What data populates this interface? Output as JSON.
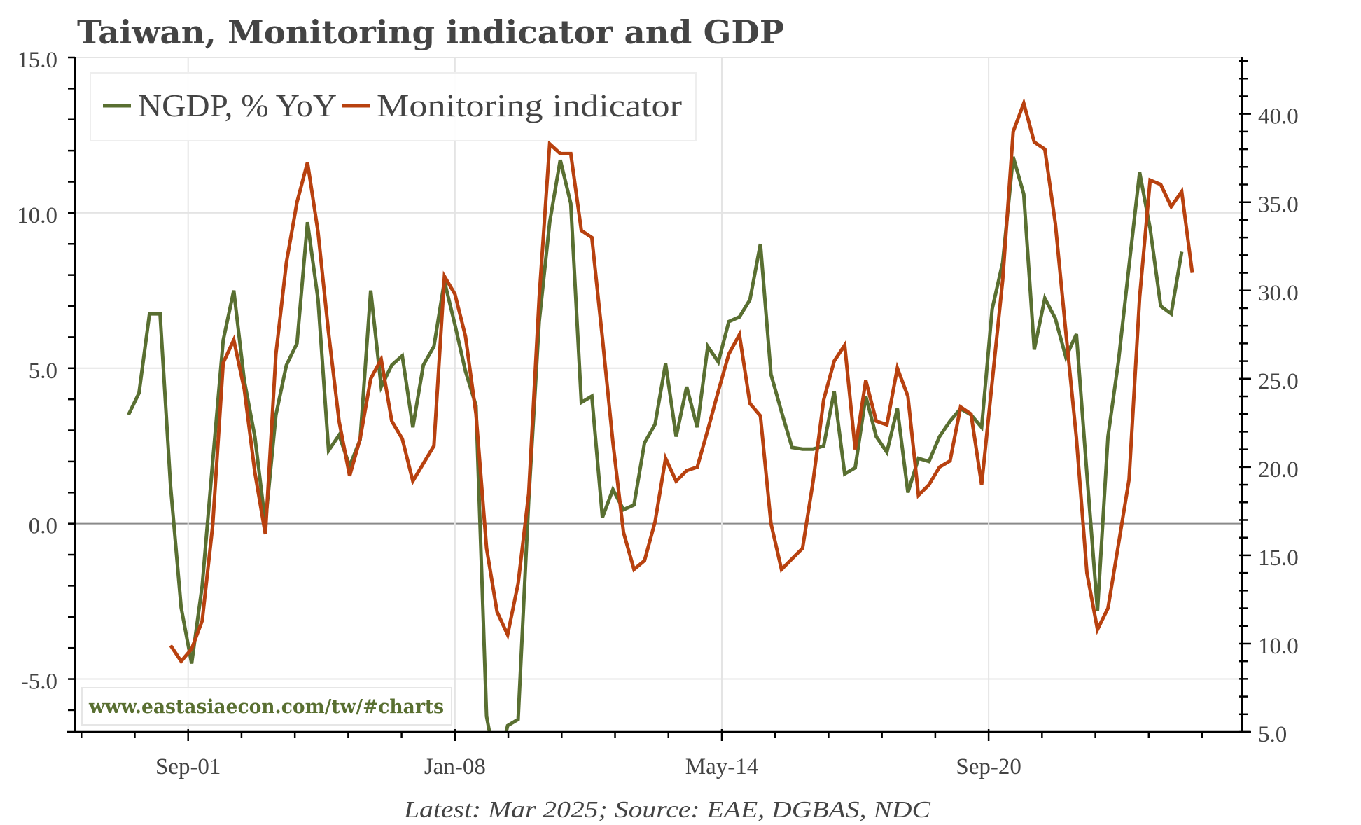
{
  "chart_data": {
    "type": "line",
    "title": "Taiwan, Monitoring indicator and GDP",
    "footer": "Latest: Mar 2025; Source: EAE, DGBAS, NDC",
    "watermark": "www.eastasiaecon.com/tw/#charts",
    "legend": {
      "placement": "top-left",
      "entries": [
        "NGDP, % YoY",
        "Monitoring indicator"
      ]
    },
    "grid": true,
    "frequency": "quarterly",
    "x_ticks": [
      {
        "label": "Sep-01",
        "date": "2001-09"
      },
      {
        "label": "Jan-08",
        "date": "2008-01"
      },
      {
        "label": "May-14",
        "date": "2014-05"
      },
      {
        "label": "Sep-20",
        "date": "2020-09"
      }
    ],
    "y_left": {
      "ylim": [
        -6.7,
        15
      ],
      "ticks": [
        "-5.0",
        "0.0",
        "5.0",
        "10.0",
        "15.0"
      ]
    },
    "y_right": {
      "ylim": [
        5,
        43.2
      ],
      "ticks": [
        "5.0",
        "10.0",
        "15.0",
        "20.0",
        "25.0",
        "30.0",
        "35.0",
        "40.0"
      ]
    },
    "series": [
      {
        "name": "NGDP, % YoY",
        "axis": "left",
        "color": "#596f31",
        "start": "1999Q4",
        "values": [
          3.5,
          4.2,
          6.75,
          6.75,
          1.2,
          -2.7,
          -4.5,
          -2.0,
          2.0,
          5.9,
          7.5,
          4.6,
          2.8,
          0.0,
          3.5,
          5.1,
          5.8,
          9.7,
          7.2,
          2.35,
          2.85,
          1.85,
          2.7,
          7.5,
          4.4,
          5.1,
          5.4,
          3.1,
          5.1,
          5.7,
          7.8,
          6.4,
          4.9,
          3.8,
          -6.2,
          -8.0,
          -6.5,
          -6.3,
          0.75,
          6.5,
          9.7,
          11.7,
          10.3,
          3.9,
          4.1,
          0.2,
          1.1,
          0.45,
          0.6,
          2.6,
          3.2,
          5.15,
          2.8,
          4.4,
          3.1,
          5.7,
          5.2,
          6.5,
          6.65,
          7.2,
          9.0,
          4.8,
          3.6,
          2.45,
          2.4,
          2.4,
          2.5,
          4.25,
          1.6,
          1.8,
          4.1,
          2.8,
          2.3,
          3.7,
          1.0,
          2.1,
          2.0,
          2.8,
          3.3,
          3.7,
          3.5,
          3.1,
          6.9,
          8.4,
          11.8,
          10.6,
          5.6,
          7.25,
          6.6,
          5.35,
          6.1,
          1.6,
          -2.8,
          2.8,
          5.25,
          8.3,
          11.3,
          9.5,
          7.0,
          6.75,
          8.75
        ]
      },
      {
        "name": "Monitoring indicator",
        "axis": "right",
        "color": "#b8410f",
        "start": "2000Q4",
        "values": [
          9.9,
          9.0,
          9.7,
          11.3,
          16.7,
          25.9,
          27.2,
          24.4,
          19.7,
          16.2,
          26.4,
          31.6,
          35.0,
          37.25,
          33.3,
          27.6,
          22.6,
          19.5,
          21.6,
          25.0,
          26.1,
          22.6,
          21.6,
          19.2,
          20.2,
          21.2,
          30.8,
          29.8,
          27.4,
          23.0,
          15.4,
          11.8,
          10.5,
          13.4,
          18.5,
          29.6,
          38.3,
          37.75,
          37.75,
          33.4,
          33.0,
          27.3,
          21.4,
          16.3,
          14.2,
          14.7,
          16.9,
          20.5,
          19.2,
          19.8,
          20.0,
          22.1,
          24.3,
          26.4,
          27.5,
          23.6,
          22.9,
          16.8,
          14.2,
          14.8,
          15.4,
          19.2,
          23.8,
          26.0,
          26.9,
          21.0,
          24.9,
          22.6,
          22.4,
          25.6,
          24.0,
          18.4,
          19.0,
          20.0,
          20.35,
          23.4,
          23.0,
          19.0,
          24.8,
          30.6,
          39.0,
          40.6,
          38.4,
          38.0,
          33.8,
          27.6,
          21.65,
          14.0,
          10.8,
          12.0,
          15.65,
          19.3,
          29.6,
          36.25,
          36.0,
          34.75,
          35.6,
          31.0
        ]
      }
    ]
  }
}
